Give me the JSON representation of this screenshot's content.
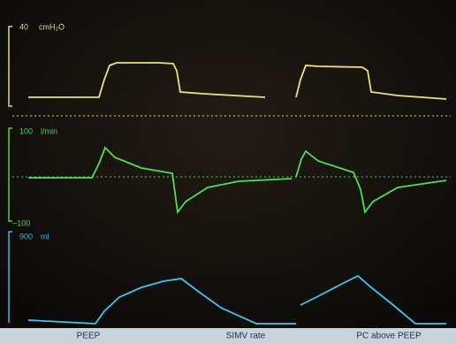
{
  "panels": [
    {
      "scale_label": "40",
      "unit": "cmH₂O"
    },
    {
      "scale_label": "100",
      "unit": "l/min",
      "min_label": "−100"
    },
    {
      "scale_label": "900",
      "unit": "ml"
    }
  ],
  "footer": {
    "labels": [
      "PEEP",
      "SIMV rate",
      "PC above PEEP"
    ]
  }
}
